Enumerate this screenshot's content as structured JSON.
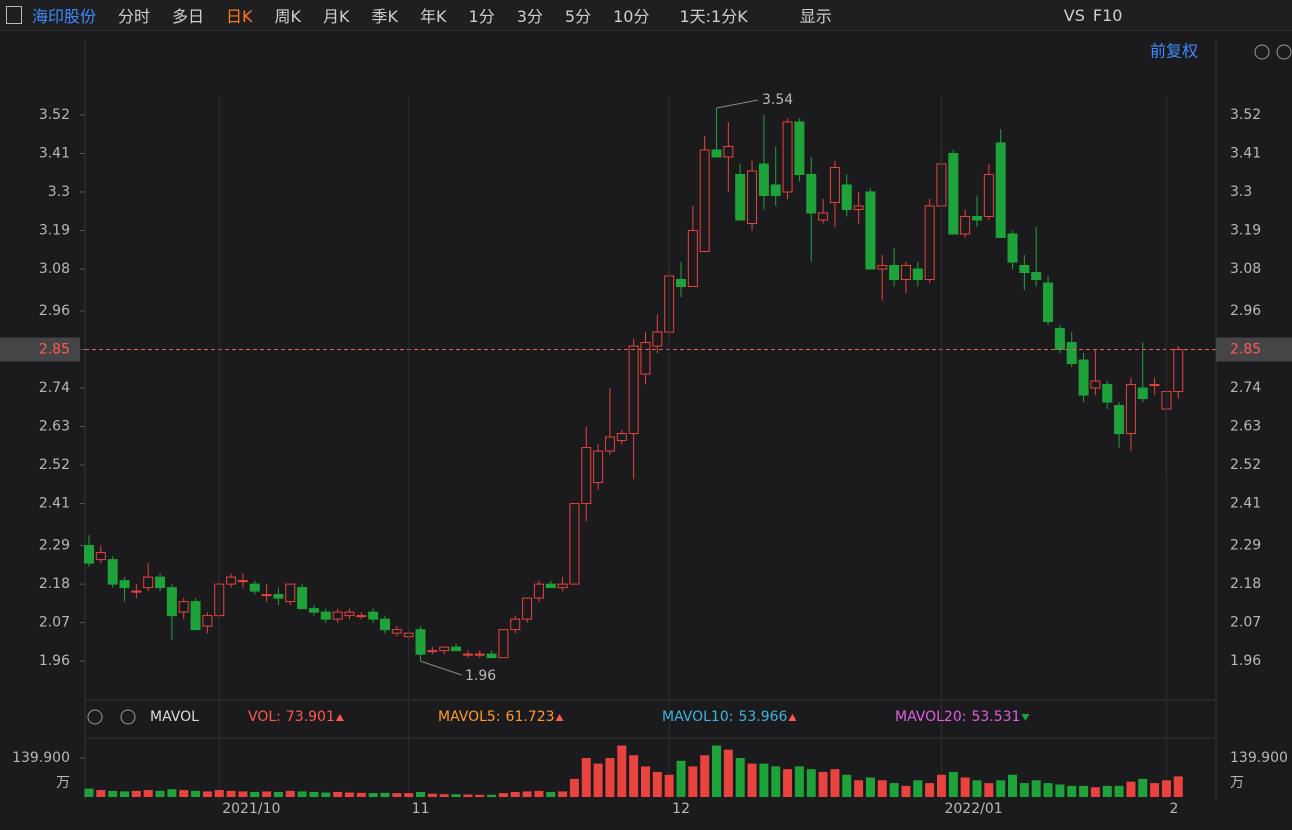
{
  "toolbar": {
    "stock": "海印股份",
    "tabs": [
      "分时",
      "多日",
      "日K",
      "周K",
      "月K",
      "季K",
      "年K",
      "1分",
      "3分",
      "5分",
      "10分"
    ],
    "active_tab": 2,
    "period": "1天:1分K",
    "display": "显示",
    "vs": "VS",
    "f10": "F10",
    "adjust": "前复权"
  },
  "chart_data": [
    {
      "type": "candlestick",
      "up_color": "#e8433f",
      "down_color": "#1ea33a",
      "open": [
        2.29,
        2.25,
        2.25,
        2.19,
        2.16,
        2.17,
        2.2,
        2.17,
        2.1,
        2.13,
        2.06,
        2.09,
        2.18,
        2.19,
        2.18,
        2.15,
        2.15,
        2.13,
        2.17,
        2.11,
        2.1,
        2.08,
        2.09,
        2.09,
        2.1,
        2.08,
        2.04,
        2.03,
        2.05,
        1.99,
        1.99,
        2.0,
        1.98,
        1.98,
        1.98,
        1.97,
        2.05,
        2.08,
        2.14,
        2.18,
        2.17,
        2.18,
        2.41,
        2.47,
        2.56,
        2.59,
        2.61,
        2.78,
        2.86,
        2.9,
        3.05,
        3.03,
        3.13,
        3.42,
        3.4,
        3.35,
        3.21,
        3.38,
        3.32,
        3.3,
        3.5,
        3.35,
        3.22,
        3.27,
        3.32,
        3.25,
        3.3,
        3.08,
        3.09,
        3.05,
        3.08,
        3.05,
        3.26,
        3.41,
        3.18,
        3.23,
        3.23,
        3.44,
        3.18,
        3.09,
        3.07,
        3.04,
        2.91,
        2.87,
        2.82,
        2.74,
        2.75,
        2.69,
        2.61,
        2.74,
        2.75,
        2.68,
        2.73
      ],
      "high": [
        2.32,
        2.29,
        2.26,
        2.2,
        2.18,
        2.24,
        2.21,
        2.18,
        2.14,
        2.14,
        2.1,
        2.19,
        2.21,
        2.21,
        2.19,
        2.18,
        2.17,
        2.18,
        2.18,
        2.12,
        2.11,
        2.11,
        2.11,
        2.1,
        2.11,
        2.09,
        2.06,
        2.05,
        2.06,
        2.0,
        2.0,
        2.01,
        1.99,
        1.99,
        1.99,
        2.05,
        2.09,
        2.14,
        2.19,
        2.19,
        2.2,
        2.41,
        2.63,
        2.58,
        2.74,
        2.62,
        2.88,
        2.9,
        2.95,
        3.08,
        3.1,
        3.26,
        3.46,
        3.54,
        3.5,
        3.38,
        3.39,
        3.52,
        3.43,
        3.51,
        3.51,
        3.4,
        3.28,
        3.39,
        3.35,
        3.3,
        3.31,
        3.12,
        3.14,
        3.1,
        3.1,
        3.28,
        3.44,
        3.42,
        3.25,
        3.29,
        3.38,
        3.48,
        3.19,
        3.12,
        3.2,
        3.06,
        2.92,
        2.9,
        2.84,
        2.85,
        2.76,
        2.7,
        2.77,
        2.87,
        2.77,
        2.73,
        2.86
      ],
      "low": [
        2.23,
        2.24,
        2.17,
        2.13,
        2.14,
        2.16,
        2.16,
        2.02,
        2.08,
        2.05,
        2.04,
        2.08,
        2.17,
        2.17,
        2.15,
        2.13,
        2.12,
        2.12,
        2.11,
        2.09,
        2.07,
        2.07,
        2.08,
        2.08,
        2.07,
        2.04,
        2.03,
        2.02,
        1.96,
        1.98,
        1.98,
        1.99,
        1.97,
        1.97,
        1.97,
        1.97,
        2.04,
        2.07,
        2.13,
        2.17,
        2.16,
        2.18,
        2.36,
        2.45,
        2.55,
        2.58,
        2.48,
        2.75,
        2.84,
        2.88,
        3.0,
        3.03,
        3.13,
        3.4,
        3.3,
        3.22,
        3.19,
        3.25,
        3.26,
        3.28,
        3.33,
        3.1,
        3.21,
        3.2,
        3.23,
        3.21,
        3.08,
        2.99,
        3.03,
        3.01,
        3.03,
        3.04,
        3.25,
        3.18,
        3.17,
        3.2,
        3.22,
        3.17,
        3.08,
        3.02,
        3.03,
        2.92,
        2.84,
        2.8,
        2.7,
        2.72,
        2.68,
        2.57,
        2.56,
        2.7,
        2.72,
        2.49,
        2.71
      ],
      "close": [
        2.24,
        2.27,
        2.18,
        2.17,
        2.16,
        2.2,
        2.17,
        2.09,
        2.13,
        2.05,
        2.09,
        2.18,
        2.2,
        2.19,
        2.16,
        2.15,
        2.14,
        2.18,
        2.11,
        2.1,
        2.08,
        2.1,
        2.1,
        2.09,
        2.08,
        2.05,
        2.05,
        2.04,
        1.98,
        1.99,
        2.0,
        1.99,
        1.98,
        1.98,
        1.97,
        2.05,
        2.08,
        2.14,
        2.18,
        2.17,
        2.18,
        2.41,
        2.57,
        2.56,
        2.6,
        2.61,
        2.86,
        2.87,
        2.9,
        3.06,
        3.03,
        3.19,
        3.42,
        3.4,
        3.43,
        3.22,
        3.36,
        3.29,
        3.29,
        3.5,
        3.35,
        3.24,
        3.24,
        3.37,
        3.25,
        3.26,
        3.08,
        3.09,
        3.05,
        3.09,
        3.05,
        3.26,
        3.38,
        3.18,
        3.23,
        3.22,
        3.35,
        3.17,
        3.1,
        3.07,
        3.05,
        2.93,
        2.85,
        2.81,
        2.72,
        2.76,
        2.7,
        2.61,
        2.75,
        2.71,
        2.75,
        2.73,
        2.85
      ],
      "ylim": [
        1.849,
        3.577
      ],
      "yticks": [
        3.52,
        3.41,
        3.3,
        3.19,
        3.08,
        2.96,
        2.85,
        2.74,
        2.63,
        2.52,
        2.41,
        2.29,
        2.18,
        2.07,
        1.96
      ],
      "max_label": 3.54,
      "min_label": 1.96,
      "current_price": 2.85
    },
    {
      "type": "bar",
      "indicator": "MAVOL",
      "categories": [
        null,
        null,
        null,
        null,
        null,
        null,
        null,
        null,
        null,
        null,
        null,
        "2021/10",
        null,
        null,
        null,
        null,
        null,
        null,
        null,
        null,
        null,
        null,
        null,
        null,
        null,
        null,
        null,
        "11",
        null,
        null,
        null,
        null,
        null,
        null,
        null,
        null,
        null,
        null,
        null,
        null,
        null,
        null,
        null,
        null,
        null,
        null,
        null,
        null,
        null,
        "12",
        null,
        null,
        null,
        null,
        null,
        null,
        null,
        null,
        null,
        null,
        null,
        null,
        null,
        null,
        null,
        null,
        null,
        null,
        null,
        null,
        null,
        null,
        "2022/01",
        null,
        null,
        null,
        null,
        null,
        null,
        null,
        null,
        null,
        null,
        null,
        null,
        null,
        null,
        null,
        null,
        null,
        null,
        "2",
        null
      ],
      "values": [
        30,
        25,
        22,
        20,
        22,
        25,
        22,
        28,
        25,
        22,
        20,
        25,
        22,
        20,
        18,
        20,
        18,
        22,
        20,
        18,
        16,
        18,
        16,
        15,
        14,
        15,
        14,
        14,
        18,
        12,
        10,
        10,
        9,
        8,
        8,
        14,
        18,
        20,
        22,
        18,
        20,
        65,
        140,
        120,
        140,
        185,
        150,
        110,
        90,
        80,
        130,
        110,
        150,
        185,
        170,
        140,
        120,
        120,
        110,
        100,
        110,
        100,
        90,
        100,
        80,
        60,
        70,
        60,
        50,
        40,
        60,
        50,
        80,
        90,
        70,
        60,
        50,
        60,
        80,
        50,
        60,
        50,
        45,
        40,
        40,
        35,
        40,
        40,
        55,
        65,
        50,
        60,
        73.901
      ],
      "ylim": [
        0,
        212
      ],
      "yticks": [
        {
          "value": 139.9,
          "label": "139.900"
        }
      ],
      "unit": "万",
      "legend": [
        {
          "name": "VOL:",
          "value": 73.901,
          "color": "#ff5a4f",
          "trend": "up"
        },
        {
          "name": "MAVOL5:",
          "value": 61.723,
          "color": "#ff9a2e",
          "trend": "up"
        },
        {
          "name": "MAVOL10:",
          "value": 53.966,
          "color": "#3fb4e0",
          "trend": "up"
        },
        {
          "name": "MAVOL20:",
          "value": 53.531,
          "color": "#e05ee0",
          "trend": "down"
        }
      ]
    }
  ]
}
